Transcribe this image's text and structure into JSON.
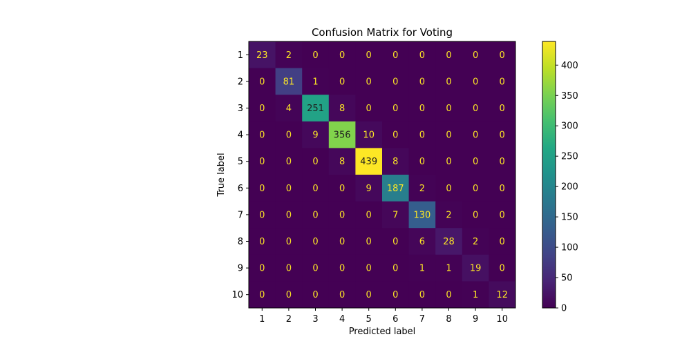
{
  "chart_data": {
    "type": "heatmap",
    "title": "Confusion Matrix for Voting",
    "xlabel": "Predicted label",
    "ylabel": "True label",
    "x_categories": [
      "1",
      "2",
      "3",
      "4",
      "5",
      "6",
      "7",
      "8",
      "9",
      "10"
    ],
    "y_categories": [
      "1",
      "2",
      "3",
      "4",
      "5",
      "6",
      "7",
      "8",
      "9",
      "10"
    ],
    "values": [
      [
        23,
        2,
        0,
        0,
        0,
        0,
        0,
        0,
        0,
        0
      ],
      [
        0,
        81,
        1,
        0,
        0,
        0,
        0,
        0,
        0,
        0
      ],
      [
        0,
        4,
        251,
        8,
        0,
        0,
        0,
        0,
        0,
        0
      ],
      [
        0,
        0,
        9,
        356,
        10,
        0,
        0,
        0,
        0,
        0
      ],
      [
        0,
        0,
        0,
        8,
        439,
        8,
        0,
        0,
        0,
        0
      ],
      [
        0,
        0,
        0,
        0,
        9,
        187,
        2,
        0,
        0,
        0
      ],
      [
        0,
        0,
        0,
        0,
        0,
        7,
        130,
        2,
        0,
        0
      ],
      [
        0,
        0,
        0,
        0,
        0,
        0,
        6,
        28,
        2,
        0
      ],
      [
        0,
        0,
        0,
        0,
        0,
        0,
        1,
        1,
        19,
        0
      ],
      [
        0,
        0,
        0,
        0,
        0,
        0,
        0,
        0,
        1,
        12
      ]
    ],
    "colormap": "viridis",
    "colorbar": {
      "range": [
        0,
        439
      ],
      "ticks": [
        0,
        50,
        100,
        150,
        200,
        250,
        300,
        350,
        400
      ]
    },
    "text_colors": {
      "dark_cell": "#fde725",
      "bright_cell": "#1f1f1f"
    },
    "grid": false
  }
}
